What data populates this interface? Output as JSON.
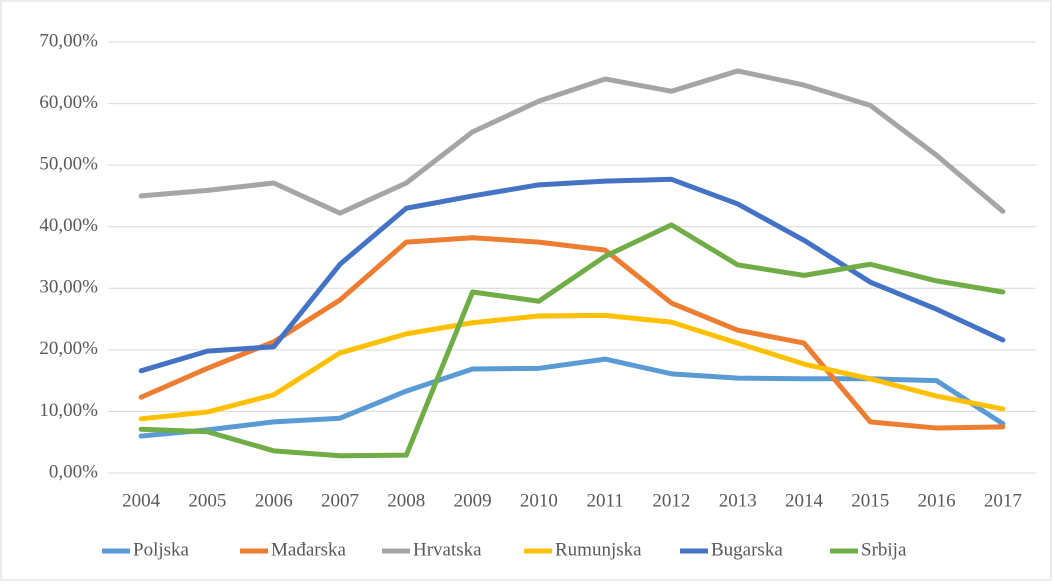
{
  "chart_data": {
    "type": "line",
    "categories": [
      "2004",
      "2005",
      "2006",
      "2007",
      "2008",
      "2009",
      "2010",
      "2011",
      "2012",
      "2013",
      "2014",
      "2015",
      "2016",
      "2017"
    ],
    "series": [
      {
        "name": "Poljska",
        "color": "#5B9BD5",
        "values": [
          6.0,
          7.0,
          8.3,
          8.9,
          13.3,
          16.9,
          17.0,
          18.5,
          16.1,
          15.4,
          15.3,
          15.3,
          15.0,
          8.0
        ]
      },
      {
        "name": "Mađarska",
        "color": "#ED7D31",
        "values": [
          12.3,
          17.0,
          21.3,
          28.1,
          37.5,
          38.2,
          37.5,
          36.2,
          27.6,
          23.2,
          21.1,
          8.3,
          7.3,
          7.5
        ]
      },
      {
        "name": "Hrvatska",
        "color": "#A5A5A5",
        "values": [
          45.0,
          45.9,
          47.1,
          42.2,
          47.1,
          55.4,
          60.4,
          64.0,
          62.0,
          65.3,
          63.0,
          59.7,
          51.6,
          42.5
        ]
      },
      {
        "name": "Rumunjska",
        "color": "#FFC000",
        "values": [
          8.8,
          9.9,
          12.7,
          19.5,
          22.6,
          24.4,
          25.5,
          25.6,
          24.5,
          21.1,
          17.7,
          15.3,
          12.5,
          10.4
        ]
      },
      {
        "name": "Bugarska",
        "color": "#4472C4",
        "values": [
          16.6,
          19.8,
          20.5,
          33.9,
          43.0,
          45.0,
          46.8,
          47.4,
          47.7,
          43.7,
          37.8,
          31.0,
          26.6,
          21.6
        ]
      },
      {
        "name": "Srbija",
        "color": "#70AD47",
        "values": [
          7.1,
          6.7,
          3.6,
          2.8,
          2.9,
          29.4,
          27.9,
          35.2,
          40.3,
          33.8,
          32.1,
          33.9,
          31.2,
          29.4
        ]
      }
    ],
    "ylim": [
      0,
      70
    ],
    "yticks": [
      {
        "value": 0,
        "label": "0,00%"
      },
      {
        "value": 10,
        "label": "10,00%"
      },
      {
        "value": 20,
        "label": "20,00%"
      },
      {
        "value": 30,
        "label": "30,00%"
      },
      {
        "value": 40,
        "label": "40,00%"
      },
      {
        "value": 50,
        "label": "50,00%"
      },
      {
        "value": 60,
        "label": "60,00%"
      },
      {
        "value": 70,
        "label": "70,00%"
      }
    ],
    "grid": true,
    "legend": "bottom"
  }
}
